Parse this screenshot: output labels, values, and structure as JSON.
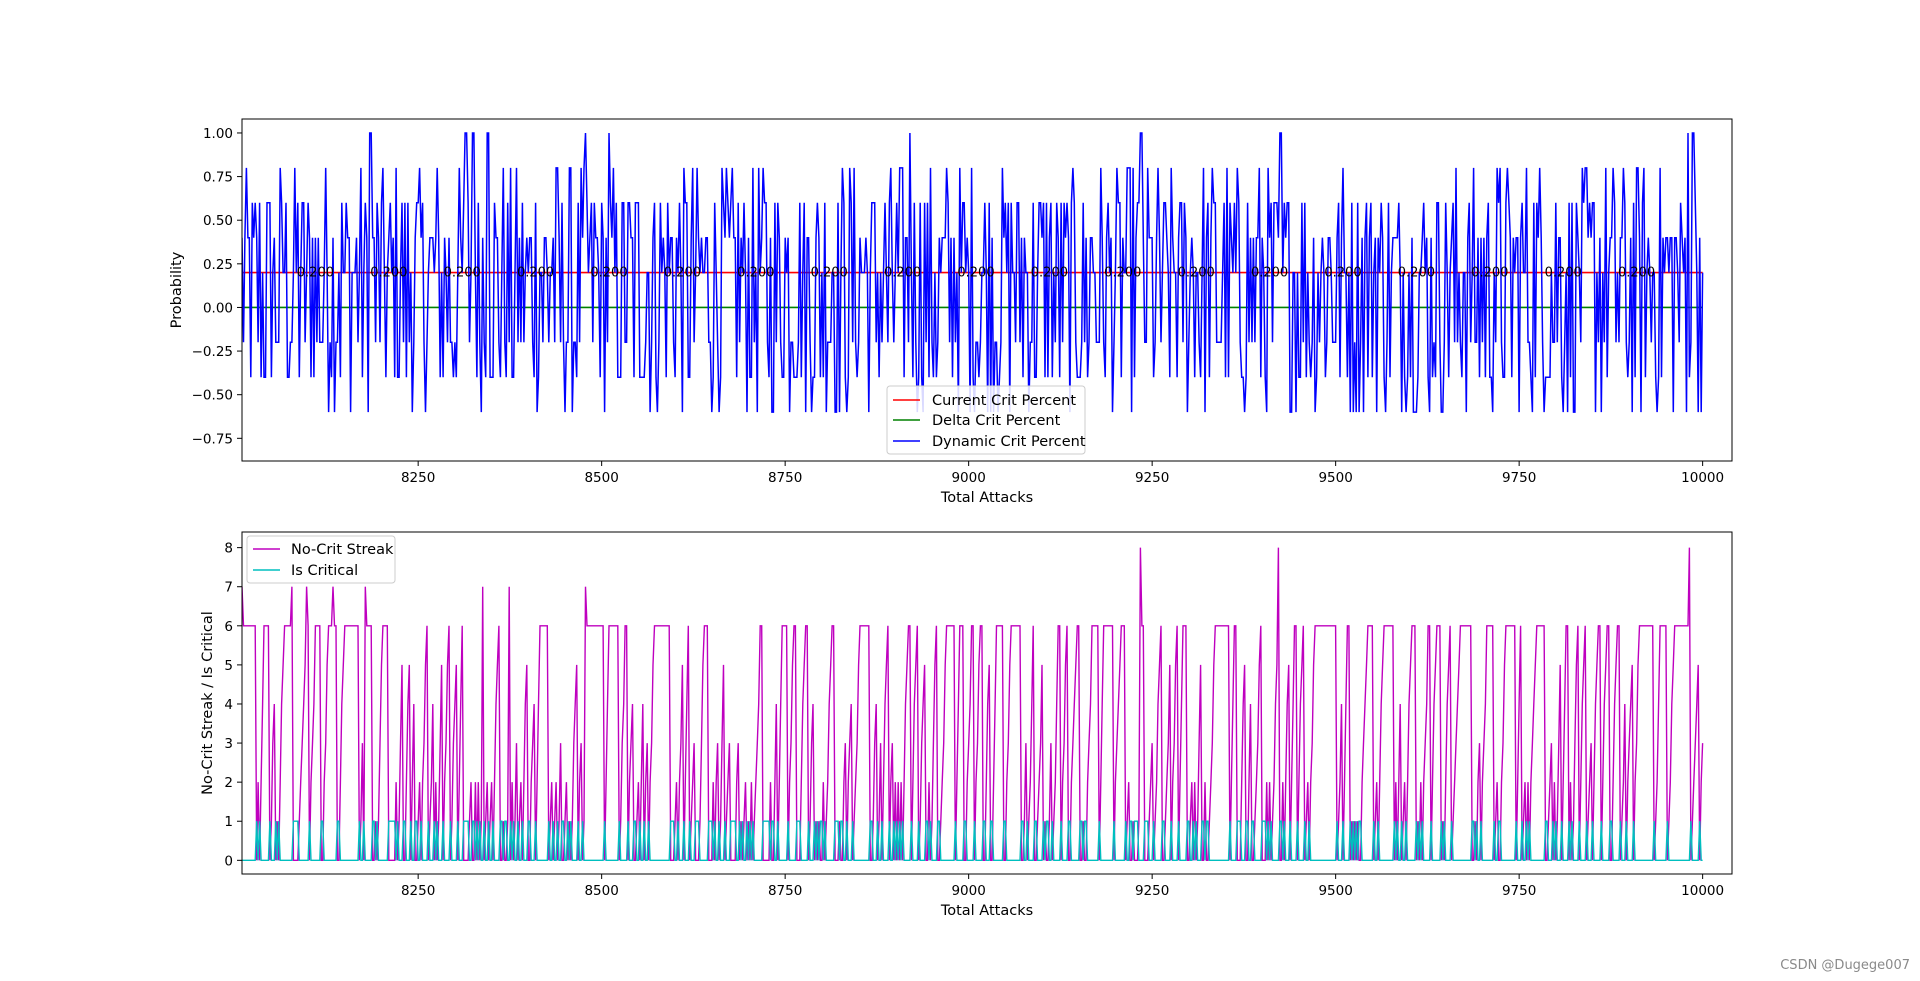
{
  "watermark": "CSDN @Dugege007",
  "chart_data": [
    {
      "type": "line",
      "xlabel": "Total Attacks",
      "ylabel": "Probability",
      "xlim": [
        8010,
        10040
      ],
      "ylim": [
        -0.88,
        1.08
      ],
      "xticks": [
        8250,
        8500,
        8750,
        9000,
        9250,
        9500,
        9750,
        10000
      ],
      "xtick_labels": [
        "8250",
        "8500",
        "8750",
        "9000",
        "9250",
        "9500",
        "9750",
        "10000"
      ],
      "yticks": [
        -0.75,
        -0.5,
        -0.25,
        0.0,
        0.25,
        0.5,
        0.75,
        1.0
      ],
      "ytick_labels": [
        "−0.75",
        "−0.50",
        "−0.25",
        "0.00",
        "0.25",
        "0.50",
        "0.75",
        "1.00"
      ],
      "legend_placement": "lower-center",
      "series": [
        {
          "name": "Current Crit Percent",
          "color": "#ff0000",
          "constant": 0.2
        },
        {
          "name": "Delta Crit Percent",
          "color": "#008000",
          "constant": 0.0
        },
        {
          "name": "Dynamic Crit Percent",
          "color": "#0000ff",
          "pattern": "oscillates each attack between about -0.6 and 1.0, mostly between -0.4 and 0.8",
          "peaks": [
            {
              "x": 8185,
              "y": 1.0
            },
            {
              "x": 8315,
              "y": 1.0
            },
            {
              "x": 8325,
              "y": 1.0
            },
            {
              "x": 8345,
              "y": 1.0
            },
            {
              "x": 8478,
              "y": 1.0
            },
            {
              "x": 8510,
              "y": 1.0
            },
            {
              "x": 8920,
              "y": 1.0
            },
            {
              "x": 9235,
              "y": 1.0
            },
            {
              "x": 9425,
              "y": 1.0
            },
            {
              "x": 9980,
              "y": 1.0
            },
            {
              "x": 9987,
              "y": 1.0
            }
          ]
        }
      ],
      "annotations": {
        "text": "0.200",
        "y": 0.2,
        "x": [
          8110,
          8210,
          8310,
          8410,
          8510,
          8610,
          8710,
          8810,
          8910,
          9010,
          9110,
          9210,
          9310,
          9410,
          9510,
          9610,
          9710,
          9810,
          9910
        ]
      }
    },
    {
      "type": "line",
      "xlabel": "Total Attacks",
      "ylabel": "No-Crit Streak / Is Critical",
      "xlim": [
        8010,
        10040
      ],
      "ylim": [
        -0.35,
        8.4
      ],
      "xticks": [
        8250,
        8500,
        8750,
        9000,
        9250,
        9500,
        9750,
        10000
      ],
      "xtick_labels": [
        "8250",
        "8500",
        "8750",
        "9000",
        "9250",
        "9500",
        "9750",
        "10000"
      ],
      "yticks": [
        0,
        1,
        2,
        3,
        4,
        5,
        6,
        7,
        8
      ],
      "ytick_labels": [
        "0",
        "1",
        "2",
        "3",
        "4",
        "5",
        "6",
        "7",
        "8"
      ],
      "legend_placement": "upper-left",
      "series": [
        {
          "name": "No-Crit Streak",
          "color": "#bf00bf",
          "pattern": "resets to 0 after each critical, mostly 2 to 5",
          "peaks": [
            {
              "x": 8010,
              "y": 7
            },
            {
              "x": 8080,
              "y": 7
            },
            {
              "x": 8100,
              "y": 7
            },
            {
              "x": 8135,
              "y": 7
            },
            {
              "x": 8180,
              "y": 7
            },
            {
              "x": 8340,
              "y": 7
            },
            {
              "x": 8375,
              "y": 7
            },
            {
              "x": 8478,
              "y": 7
            },
            {
              "x": 9235,
              "y": 8
            },
            {
              "x": 9425,
              "y": 8
            },
            {
              "x": 9985,
              "y": 8
            }
          ]
        },
        {
          "name": "Is Critical",
          "color": "#00bfbf",
          "values_range": [
            0,
            1
          ],
          "pattern": "0 or 1 per attack, critical roughly 20% of attacks"
        }
      ]
    }
  ]
}
